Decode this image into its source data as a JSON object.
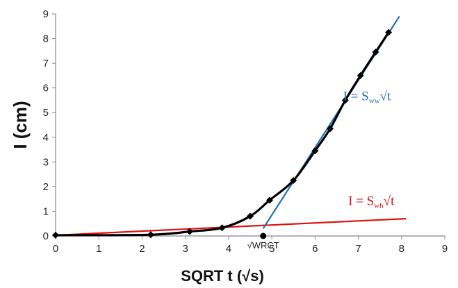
{
  "chart_data": {
    "type": "line",
    "title": "",
    "xlabel": "SQRT t (√s)",
    "ylabel": "I (cm)",
    "xlim": [
      0,
      9
    ],
    "ylim": [
      0,
      9
    ],
    "x_ticks": [
      "0",
      "1",
      "2",
      "3",
      "4",
      "5",
      "6",
      "7",
      "8",
      "9"
    ],
    "y_ticks": [
      "0",
      "1",
      "2",
      "3",
      "4",
      "5",
      "6",
      "7",
      "8",
      "9"
    ],
    "grid": false,
    "legend": "none",
    "series": [
      {
        "color": "#000000",
        "marker": "diamond",
        "smooth": true,
        "x": [
          0,
          2.2,
          3.1,
          3.85,
          4.5,
          4.95,
          5.5,
          6.0,
          6.35,
          6.7,
          7.05,
          7.4,
          7.7
        ],
        "y": [
          0.03,
          0.05,
          0.18,
          0.33,
          0.8,
          1.45,
          2.25,
          3.45,
          4.35,
          5.5,
          6.5,
          7.45,
          8.25
        ]
      },
      {
        "color": "#1f6fb5",
        "x": [
          4.8,
          7.95
        ],
        "y": [
          0.3,
          8.9
        ]
      },
      {
        "color": "#dd1111",
        "x": [
          0,
          8.1
        ],
        "y": [
          0.03,
          0.7
        ]
      }
    ],
    "points": [
      {
        "x": 4.8,
        "y": 0,
        "color": "#000000"
      }
    ],
    "annotations": {
      "blue_eq": {
        "prefix": "I = S",
        "sub": "ww",
        "suffix": "√t",
        "color": "#1f6fb5",
        "x": 7.2,
        "y": 5.5
      },
      "red_eq": {
        "prefix": "I = S",
        "sub": "wh",
        "suffix": "√t",
        "color": "#dd1111",
        "x": 7.3,
        "y": 1.25
      },
      "wrct": {
        "text": "√WRCT",
        "x": 4.8,
        "y": -0.28
      }
    },
    "axis_color": "#888888"
  }
}
